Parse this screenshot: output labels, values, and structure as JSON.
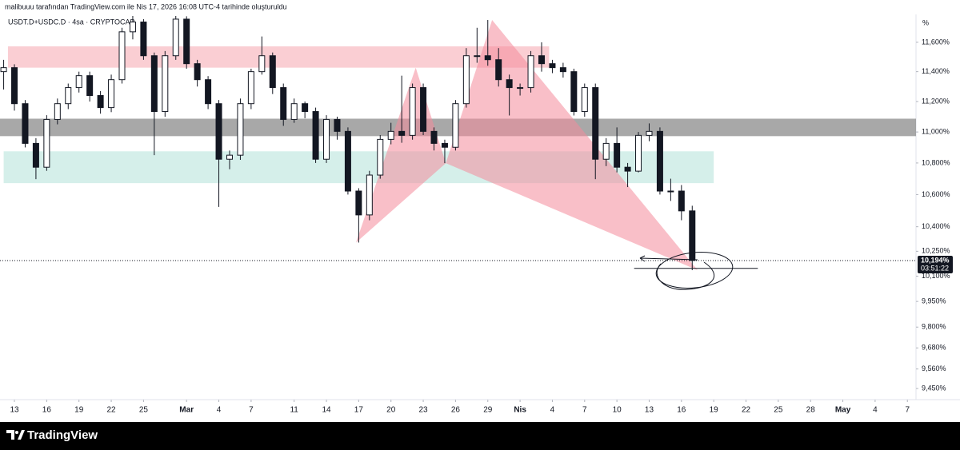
{
  "header": "malibuuu tarafından TradingView.com ile Nis 17, 2026 16:08 UTC-4 tarihinde oluşturuldu",
  "footer": "TradingView",
  "chart_data": {
    "type": "candlestick",
    "symbol": "USDT.D+USDC.D · 4sa · CRYPTOCAP",
    "axis_unit": "%",
    "log_scale": true,
    "grid": false,
    "up_color": "#089981",
    "down_color": "#f23645",
    "x": [
      -1,
      0,
      1,
      2,
      3,
      4,
      5,
      6,
      7,
      8,
      9,
      10,
      11,
      12,
      13,
      14,
      15,
      16,
      17,
      18,
      19,
      20,
      21,
      22,
      23,
      24,
      25,
      26,
      27,
      28,
      29,
      30,
      31,
      32,
      33,
      34,
      35,
      36,
      37,
      38,
      39,
      40,
      41,
      42,
      43,
      44,
      45,
      46,
      47,
      48,
      49,
      50,
      51,
      52,
      53,
      54,
      55,
      56,
      57,
      58,
      59,
      60,
      61,
      62,
      63
    ],
    "open": [
      11400,
      11427,
      11186,
      10926,
      10773,
      11082,
      11186,
      11293,
      11373,
      11240,
      11160,
      11346,
      11672,
      11740,
      11508,
      11134,
      11508,
      11760,
      11454,
      11346,
      11186,
      10824,
      10850,
      11186,
      11400,
      11508,
      11293,
      11082,
      11186,
      11134,
      10824,
      11082,
      11004,
      10622,
      10473,
      10723,
      10952,
      11004,
      10978,
      11293,
      11004,
      10926,
      10901,
      11186,
      11508,
      11508,
      11481,
      11346,
      11293,
      11293,
      11508,
      11454,
      11427,
      11400,
      11134,
      11293,
      10824,
      10926,
      10773,
      10748,
      10978,
      11004,
      10622,
      10622,
      10498
    ],
    "high": [
      11480,
      11450,
      11210,
      10960,
      11110,
      11220,
      11320,
      11400,
      11400,
      11270,
      11380,
      11700,
      11782,
      11760,
      11530,
      11540,
      11782,
      11780,
      11480,
      11370,
      11210,
      10880,
      11220,
      11420,
      11640,
      11530,
      11320,
      11220,
      11200,
      11160,
      11110,
      11100,
      11030,
      10640,
      10750,
      10980,
      11060,
      11373,
      11320,
      11320,
      11030,
      10950,
      11210,
      11560,
      11700,
      11754,
      11560,
      11380,
      11320,
      11540,
      11600,
      11480,
      11460,
      11420,
      11320,
      11320,
      10960,
      11030,
      10800,
      11000,
      11056,
      11030,
      10700,
      10660,
      10530
    ],
    "low": [
      11280,
      11140,
      10900,
      10697,
      10750,
      11050,
      11150,
      11260,
      11200,
      11120,
      11130,
      11320,
      11620,
      11480,
      10850,
      11100,
      11480,
      11420,
      11300,
      11150,
      10523,
      10760,
      10820,
      11150,
      11380,
      11250,
      11040,
      11060,
      11090,
      10800,
      10800,
      10950,
      10600,
      10303,
      10440,
      10700,
      10920,
      10930,
      10950,
      10980,
      10880,
      10799,
      10880,
      11160,
      11460,
      11440,
      11300,
      11108,
      11240,
      11260,
      11400,
      11390,
      11360,
      11108,
      11100,
      10697,
      10780,
      10740,
      10647,
      10740,
      10940,
      10600,
      10560,
      10440,
      10136
    ],
    "close": [
      11427,
      11186,
      10926,
      10773,
      11082,
      11186,
      11293,
      11373,
      11240,
      11160,
      11346,
      11672,
      11740,
      11508,
      11134,
      11508,
      11760,
      11454,
      11346,
      11186,
      10824,
      10850,
      11186,
      11400,
      11508,
      11293,
      11082,
      11186,
      11134,
      10824,
      11082,
      11004,
      10622,
      10473,
      10723,
      10952,
      11004,
      10978,
      11293,
      11004,
      10926,
      10901,
      11186,
      11508,
      11508,
      11481,
      11346,
      11293,
      11293,
      11508,
      11454,
      11427,
      11400,
      11134,
      11293,
      10824,
      10926,
      10773,
      10748,
      10978,
      11004,
      10622,
      10622,
      10498,
      10194
    ],
    "xlim": [
      -1.34,
      83.8
    ],
    "ylim": [
      9388,
      11782
    ],
    "xticks": [
      {
        "value": 0,
        "label": "13"
      },
      {
        "value": 3,
        "label": "16"
      },
      {
        "value": 6,
        "label": "19"
      },
      {
        "value": 9,
        "label": "22"
      },
      {
        "value": 12,
        "label": "25"
      },
      {
        "value": 16,
        "label": "Mar"
      },
      {
        "value": 19,
        "label": "4"
      },
      {
        "value": 22,
        "label": "7"
      },
      {
        "value": 26,
        "label": "11"
      },
      {
        "value": 29,
        "label": "14"
      },
      {
        "value": 32,
        "label": "17"
      },
      {
        "value": 35,
        "label": "20"
      },
      {
        "value": 38,
        "label": "23"
      },
      {
        "value": 41,
        "label": "26"
      },
      {
        "value": 44,
        "label": "29"
      },
      {
        "value": 47,
        "label": "Nis"
      },
      {
        "value": 50,
        "label": "4"
      },
      {
        "value": 53,
        "label": "7"
      },
      {
        "value": 56,
        "label": "10"
      },
      {
        "value": 59,
        "label": "13"
      },
      {
        "value": 62,
        "label": "16"
      },
      {
        "value": 65,
        "label": "19"
      },
      {
        "value": 68,
        "label": "22"
      },
      {
        "value": 71,
        "label": "25"
      },
      {
        "value": 74,
        "label": "28"
      },
      {
        "value": 77,
        "label": "May"
      },
      {
        "value": 80,
        "label": "4"
      },
      {
        "value": 83,
        "label": "7"
      }
    ],
    "yticks": [
      {
        "value": 11600,
        "label": "11,600%"
      },
      {
        "value": 11400,
        "label": "11,400%"
      },
      {
        "value": 11200,
        "label": "11,200%"
      },
      {
        "value": 11000,
        "label": "11,000%"
      },
      {
        "value": 10800,
        "label": "10,800%"
      },
      {
        "value": 10600,
        "label": "10,600%"
      },
      {
        "value": 10400,
        "label": "10,400%"
      },
      {
        "value": 10250,
        "label": "10,250%"
      },
      {
        "value": 10100,
        "label": "10,100%"
      },
      {
        "value": 9950,
        "label": "9,950%"
      },
      {
        "value": 9800,
        "label": "9,800%"
      },
      {
        "value": 9680,
        "label": "9,680%"
      },
      {
        "value": 9560,
        "label": "9,560%"
      },
      {
        "value": 9450,
        "label": "9,450%"
      }
    ],
    "zones": [
      {
        "x": [
          -0.6,
          49.7
        ],
        "values": [
          11427,
          11572
        ],
        "color": "#f7b4bc"
      },
      {
        "x": [
          -1.34,
          83.8
        ],
        "values": [
          10973,
          11087
        ],
        "color": "#7a7a7a"
      },
      {
        "x": [
          -1,
          65
        ],
        "values": [
          10672,
          10875
        ],
        "color": "#bfe6df"
      }
    ],
    "pattern": {
      "x": [
        31.75,
        37.3,
        40.1,
        44.4,
        63.5
      ],
      "values": [
        10303,
        11427,
        10799,
        11754,
        10136
      ],
      "color": "#f48a9a"
    },
    "hline": {
      "x": [
        57.6,
        69.1
      ],
      "value": 10147
    },
    "last_price": {
      "value": 10194,
      "label": "10,194%",
      "countdown": "03:51:22"
    }
  }
}
